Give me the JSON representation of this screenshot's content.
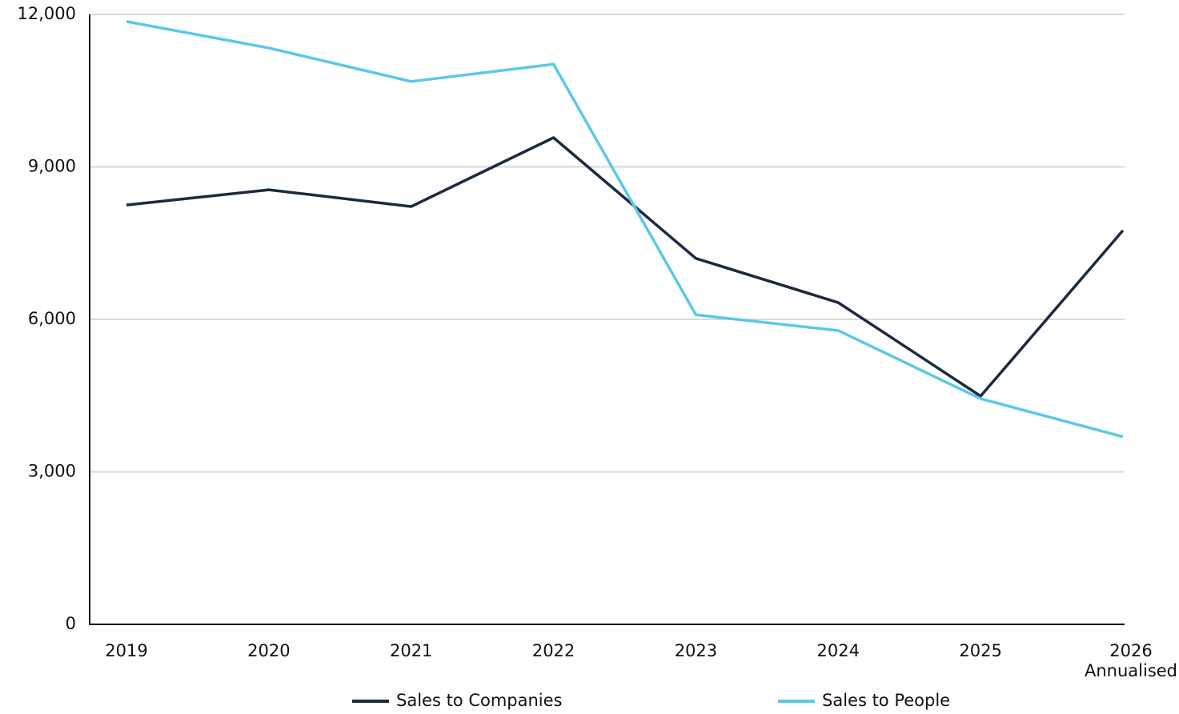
{
  "chart_data": {
    "type": "line",
    "categories": [
      "2019",
      "2020",
      "2021",
      "2022",
      "2023",
      "2024",
      "2025",
      "2026 Annualised"
    ],
    "series": [
      {
        "name": "Sales to Companies",
        "color": "#1c2a40",
        "values": [
          8250,
          8550,
          8220,
          9575,
          7200,
          6330,
          4490,
          7750
        ]
      },
      {
        "name": "Sales to People",
        "color": "#5bc8e8",
        "values": [
          11860,
          11340,
          10680,
          11020,
          6090,
          5780,
          4440,
          3690
        ]
      }
    ],
    "ylim": [
      0,
      12000
    ],
    "yticks": [
      0,
      {
        "value": 3000,
        "label": "3,000"
      },
      {
        "value": 6000,
        "label": "6,000"
      },
      {
        "value": 9000,
        "label": "9,000"
      },
      {
        "value": 12000,
        "label": "12,000"
      }
    ],
    "grid": true,
    "legend": "bottom"
  }
}
